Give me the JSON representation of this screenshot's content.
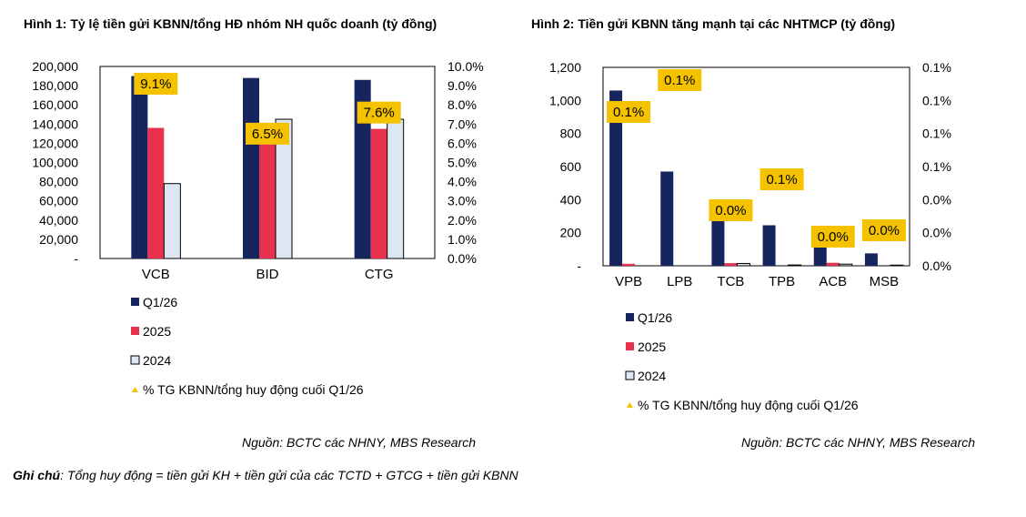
{
  "chart_data": [
    {
      "type": "bar",
      "title": "Hình 1: Tỷ lệ tiền gửi KBNN/tổng HĐ nhóm NH quốc doanh (tỷ đồng)",
      "categories": [
        "VCB",
        "BID",
        "CTG"
      ],
      "series": [
        {
          "name": "Q1/26",
          "values": [
            190000,
            188000,
            186000
          ],
          "color": "#17255f"
        },
        {
          "name": "2025",
          "values": [
            136000,
            121000,
            135000
          ],
          "color": "#e8304f"
        },
        {
          "name": "2024",
          "values": [
            78000,
            145000,
            145000
          ],
          "color": "#dde6f3"
        }
      ],
      "ratio_series": {
        "name": "% TG KBNN/tổng huy động cuối Q1/26",
        "values": [
          0.091,
          0.065,
          0.076
        ],
        "labels": [
          "9.1%",
          "6.5%",
          "7.6%"
        ],
        "color": "#f5c200"
      },
      "ylim": [
        0,
        200000
      ],
      "y2lim": [
        0,
        0.1
      ],
      "y_ticks": [
        "-",
        "20,000",
        "40,000",
        "60,000",
        "80,000",
        "100,000",
        "120,000",
        "140,000",
        "160,000",
        "180,000",
        "200,000"
      ],
      "y2_ticks": [
        "0.0%",
        "1.0%",
        "2.0%",
        "3.0%",
        "4.0%",
        "5.0%",
        "6.0%",
        "7.0%",
        "8.0%",
        "9.0%",
        "10.0%"
      ],
      "legend_position": "bottom-left",
      "source": "Nguồn: BCTC các NHNY, MBS Research"
    },
    {
      "type": "bar",
      "title": "Hình 2: Tiền gửi KBNN tăng mạnh tại các NHTMCP (tỷ đồng)",
      "categories": [
        "VPB",
        "LPB",
        "TCB",
        "TPB",
        "ACB",
        "MSB"
      ],
      "series": [
        {
          "name": "Q1/26",
          "values": [
            1060,
            570,
            280,
            245,
            115,
            75
          ],
          "color": "#17255f"
        },
        {
          "name": "2025",
          "values": [
            12,
            0,
            16,
            0,
            18,
            0
          ],
          "color": "#e8304f"
        },
        {
          "name": "2024",
          "values": [
            0,
            0,
            14,
            5,
            10,
            4
          ],
          "color": "#dde6f3"
        }
      ],
      "ratio_series": {
        "name": "% TG KBNN/tổng huy động cuối Q1/26",
        "values": [
          0.1,
          0.1,
          0.0,
          0.1,
          0.0,
          0.0
        ],
        "labels": [
          "0.1%",
          "0.1%",
          "0.0%",
          "0.1%",
          "0.0%",
          "0.0%"
        ],
        "color": "#f5c200"
      },
      "ylim": [
        0,
        1200
      ],
      "y_ticks": [
        "-",
        "200",
        "400",
        "600",
        "800",
        "1,000",
        "1,200"
      ],
      "y2_ticks": [
        "0.0%",
        "0.0%",
        "0.0%",
        "0.1%",
        "0.1%",
        "0.1%",
        "0.1%"
      ],
      "legend_position": "bottom-left",
      "source": "Nguồn: BCTC các NHNY, MBS Research"
    }
  ],
  "note": {
    "label": "Ghi chú",
    "text": ": Tổng huy động = tiền gửi KH + tiền gửi của các TCTD + GTCG + tiền gửi KBNN"
  }
}
